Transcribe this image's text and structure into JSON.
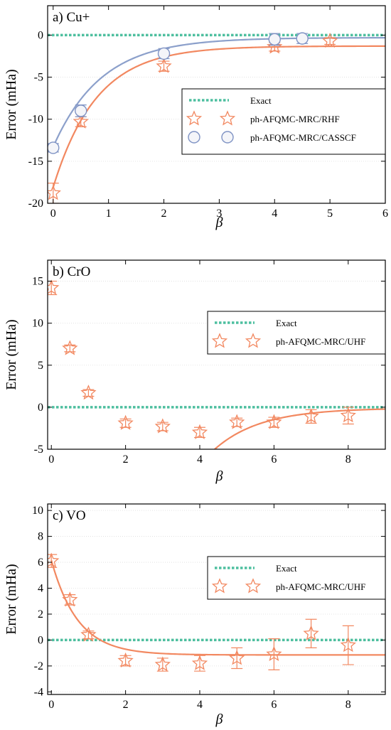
{
  "colors": {
    "exact": "#4dbf9f",
    "rhf": "#f28860",
    "casscf_line": "#8ca0cb",
    "casscf_marker_edge": "#7f93c4",
    "grid": "#dddddd"
  },
  "chart_data": [
    {
      "type": "scatter",
      "title": "a) Cu+",
      "xlabel": "β",
      "ylabel": "Error (mHa)",
      "xlim": [
        -0.1,
        6
      ],
      "ylim": [
        -20,
        3.5
      ],
      "xticks": [
        0,
        1,
        2,
        3,
        4,
        5,
        6
      ],
      "xtick_labels": [
        "0",
        "1",
        "2",
        "3",
        "4",
        "5",
        "6"
      ],
      "yticks": [
        0,
        -5,
        -10,
        -15,
        -20
      ],
      "ytick_labels": [
        "0",
        "-5",
        "-10",
        "-15",
        "-20"
      ],
      "grid": "horizontal",
      "legend_position": "center-right",
      "exact_line": {
        "name": "Exact",
        "y": 0
      },
      "series": [
        {
          "name": "ph-AFQMC-MRC/RHF",
          "marker": "star",
          "x": [
            0,
            0.5,
            2,
            4,
            5
          ],
          "y": [
            -18.8,
            -10.3,
            -3.7,
            -1.4,
            -0.7
          ],
          "err": [
            1.2,
            0.6,
            0.6,
            0.5,
            0.4
          ],
          "fit": {
            "a": -1.3,
            "b": -16.8,
            "k": 1.28,
            "x_start": 0
          }
        },
        {
          "name": "ph-AFQMC-MRC/CASSCF",
          "marker": "circle",
          "x": [
            0,
            0.5,
            2,
            4,
            4.5
          ],
          "y": [
            -13.4,
            -9.0,
            -2.2,
            -0.5,
            -0.4
          ],
          "err": [
            0.5,
            0.7,
            0.6,
            0.7,
            0.6
          ],
          "fit": {
            "a": -0.3,
            "b": -13.0,
            "k": 1.15,
            "x_start": 0
          }
        }
      ]
    },
    {
      "type": "scatter",
      "title": "b) CrO",
      "xlabel": "β",
      "ylabel": "Error (mHa)",
      "xlim": [
        -0.1,
        9
      ],
      "ylim": [
        -5,
        17.5
      ],
      "xticks": [
        0,
        2,
        4,
        6,
        8
      ],
      "xtick_labels": [
        "0",
        "2",
        "4",
        "6",
        "8"
      ],
      "yticks": [
        15,
        10,
        5,
        0,
        -5
      ],
      "ytick_labels": [
        "15",
        "10",
        "5",
        "0",
        "-5"
      ],
      "grid": "horizontal",
      "legend_position": "upper-right",
      "exact_line": {
        "name": "Exact",
        "y": 0
      },
      "series": [
        {
          "name": "ph-AFQMC-MRC/UHF",
          "marker": "star",
          "x": [
            0,
            0.5,
            1,
            2,
            3,
            4,
            5,
            6,
            7,
            8
          ],
          "y": [
            14.2,
            7.0,
            1.7,
            -1.9,
            -2.3,
            -3.0,
            -1.8,
            -1.8,
            -1.1,
            -1.0
          ],
          "err": [
            0.8,
            0.4,
            0.4,
            0.5,
            0.5,
            0.6,
            0.5,
            0.6,
            0.8,
            1.0
          ],
          "fit": {
            "a": -0.1,
            "b": -166,
            "k": 0.8,
            "x_start": 2.5
          }
        }
      ]
    },
    {
      "type": "scatter",
      "title": "c) VO",
      "xlabel": "β",
      "ylabel": "Error (mHa)",
      "xlim": [
        -0.1,
        9
      ],
      "ylim": [
        -4.2,
        10.5
      ],
      "xticks": [
        0,
        2,
        4,
        6,
        8
      ],
      "xtick_labels": [
        "0",
        "2",
        "4",
        "6",
        "8"
      ],
      "yticks": [
        10,
        8,
        6,
        4,
        2,
        0,
        -2,
        -4
      ],
      "ytick_labels": [
        "10",
        "8",
        "6",
        "4",
        "2",
        "0",
        "-2",
        "-4"
      ],
      "grid": "horizontal",
      "legend_position": "upper-right",
      "exact_line": {
        "name": "Exact",
        "y": 0
      },
      "series": [
        {
          "name": "ph-AFQMC-MRC/UHF",
          "marker": "star",
          "x": [
            0,
            0.5,
            1,
            2,
            3,
            4,
            5,
            6,
            7,
            8
          ],
          "y": [
            6.1,
            3.1,
            0.4,
            -1.6,
            -1.9,
            -1.8,
            -1.4,
            -1.1,
            0.5,
            -0.4
          ],
          "err": [
            0.5,
            0.4,
            0.3,
            0.4,
            0.5,
            0.6,
            0.8,
            1.2,
            1.1,
            1.5
          ],
          "fit": {
            "a": -1.15,
            "b": 7.3,
            "k": 1.4,
            "x_start": 0
          }
        }
      ]
    }
  ]
}
